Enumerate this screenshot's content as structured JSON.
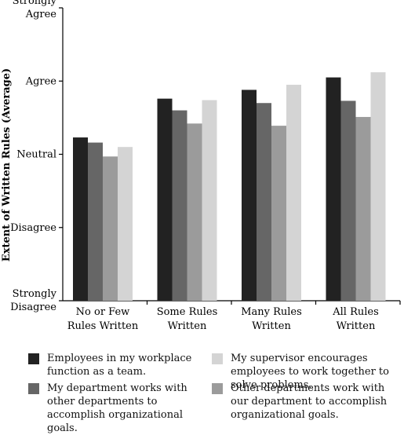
{
  "chart_data": {
    "type": "bar",
    "ylabel": "Extent of Written Rules (Average)",
    "ytick_labels": [
      "Strongly Disagree",
      "Disagree",
      "Neutral",
      "Agree",
      "Strongly Agree"
    ],
    "ylim": [
      1,
      5
    ],
    "grid": false,
    "legend_position": "bottom",
    "categories": [
      "No or Few Rules Written",
      "Some Rules Written",
      "Many Rules Written",
      "All Rules Written"
    ],
    "series": [
      {
        "name": "Employees in my workplace function as a team.",
        "color": "#222222",
        "values": [
          3.23,
          3.76,
          3.88,
          4.05
        ]
      },
      {
        "name": "My department works with other departments to accomplish organizational goals.",
        "color": "#666666",
        "values": [
          3.16,
          3.6,
          3.7,
          3.73
        ]
      },
      {
        "name": "Other departments work with our department to accomplish organizational goals.",
        "color": "#9b9b9b",
        "values": [
          2.97,
          3.42,
          3.39,
          3.51
        ]
      },
      {
        "name": "My supervisor encourages employees to work together to solve problems.",
        "color": "#d4d4d4",
        "values": [
          3.1,
          3.74,
          3.95,
          4.12
        ]
      }
    ]
  }
}
